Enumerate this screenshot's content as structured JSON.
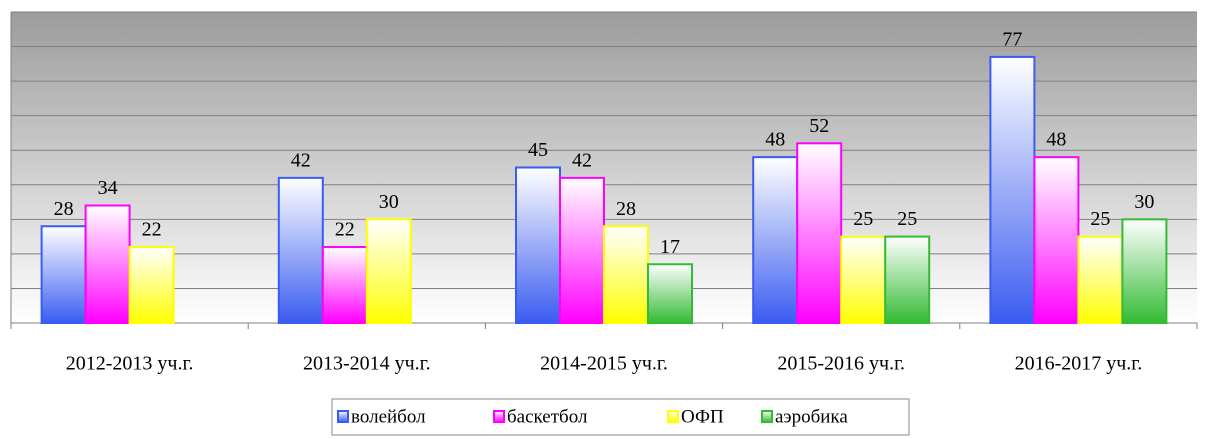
{
  "chart_data": {
    "type": "bar",
    "categories": [
      "2012-2013 уч.г.",
      "2013-2014 уч.г.",
      "2014-2015 уч.г.",
      "2015-2016 уч.г.",
      "2016-2017 уч.г."
    ],
    "series": [
      {
        "name": "волейбол",
        "color": "#3a5cf0",
        "values": [
          28,
          42,
          45,
          48,
          77
        ]
      },
      {
        "name": "баскетбол",
        "color": "#ff00ff",
        "values": [
          34,
          22,
          42,
          52,
          48
        ]
      },
      {
        "name": "ОФП",
        "color": "#ffff00",
        "values": [
          22,
          30,
          28,
          25,
          25
        ]
      },
      {
        "name": "аэробика",
        "color": "#33bb33",
        "values": [
          null,
          null,
          17,
          25,
          30
        ]
      }
    ],
    "ylim": [
      0,
      90
    ],
    "yticks": [
      0,
      10,
      20,
      30,
      40,
      50,
      60,
      70,
      80,
      90
    ],
    "grid": true,
    "legend": "bottom"
  }
}
